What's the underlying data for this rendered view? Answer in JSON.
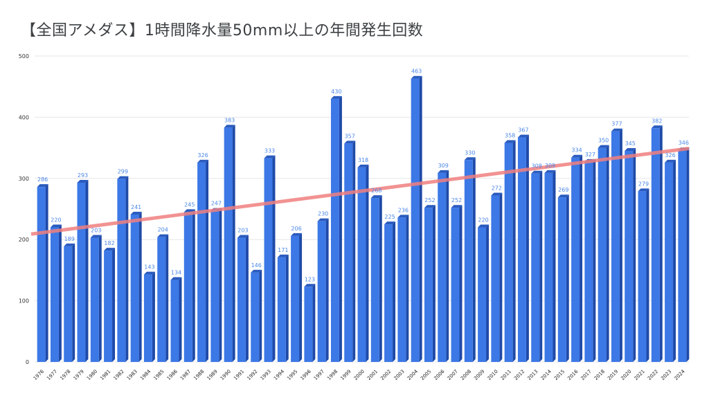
{
  "chart_data": {
    "type": "bar",
    "title": "【全国アメダス】1時間降水量50mm以上の年間発生回数",
    "xlabel": "",
    "ylabel": "",
    "ylim": [
      0,
      500
    ],
    "yticks": [
      0,
      100,
      200,
      300,
      400,
      500
    ],
    "categories": [
      "1976",
      "1977",
      "1978",
      "1979",
      "1980",
      "1981",
      "1982",
      "1983",
      "1984",
      "1985",
      "1986",
      "1987",
      "1988",
      "1989",
      "1990",
      "1991",
      "1992",
      "1993",
      "1994",
      "1995",
      "1996",
      "1997",
      "1998",
      "1999",
      "2000",
      "2001",
      "2002",
      "2003",
      "2004",
      "2005",
      "2006",
      "2007",
      "2008",
      "2009",
      "2010",
      "2011",
      "2012",
      "2013",
      "2014",
      "2015",
      "2016",
      "2017",
      "2018",
      "2019",
      "2020",
      "2021",
      "2022",
      "2023",
      "2024"
    ],
    "values": [
      286,
      220,
      189,
      293,
      203,
      182,
      299,
      241,
      143,
      204,
      134,
      245,
      326,
      247,
      383,
      203,
      146,
      333,
      171,
      206,
      123,
      230,
      430,
      357,
      318,
      268,
      225,
      236,
      463,
      252,
      309,
      252,
      330,
      220,
      272,
      358,
      367,
      308,
      309,
      269,
      334,
      327,
      350,
      377,
      345,
      279,
      382,
      326,
      346
    ],
    "trendline": {
      "start_value": 209,
      "end_value": 349
    },
    "grid": true,
    "colors": {
      "bar": "#3c78e6",
      "bar_top": "#2a5bbf",
      "bar_side": "#1f4aa8",
      "label": "#4a86e8",
      "trend": "#f08080",
      "grid": "#e6e6e6"
    }
  }
}
